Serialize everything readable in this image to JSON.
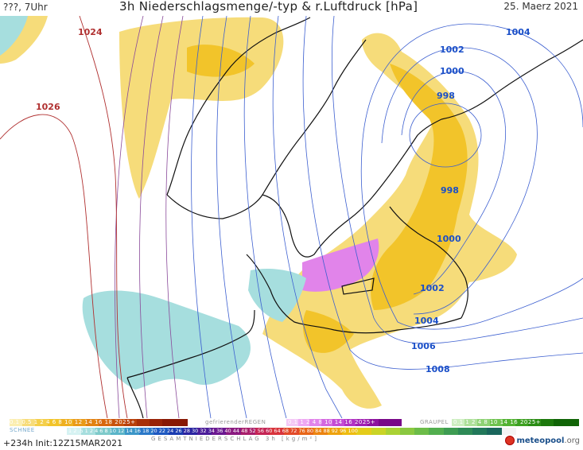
{
  "header": {
    "left": "???, 7Uhr",
    "title": "3h Niederschlagsmenge/-typ & r.Luftdruck [hPa]",
    "date": "25. Maerz 2021"
  },
  "isobars": {
    "l1004a": "1004",
    "l1002a": "1002",
    "l1000a": "1000",
    "l998a": "998",
    "l998b": "998",
    "l1000b": "1000",
    "l1002b": "1002",
    "l1004b": "1004",
    "l1006": "1006",
    "l1008": "1008",
    "l1024": "1024",
    "l1026": "1026"
  },
  "legend": {
    "rain_values": "0.1 0.5 1 2 4 6 8 10 12 14 16 18 2025+",
    "freezing_label": "gefrierenderREGEN",
    "freezing_values": "0.1 1 2 4 8 10 14 16 2025+",
    "graupel_label": "GRAUPEL",
    "graupel_values": "0.1 1 2 4 8 10 14 16 2025+",
    "snow_label": "SCHNEE",
    "snow_values": "1 2 .5 1 2 4 6 8 10 12 14 16 18 20 22 24 26 28 30 32 34 36 40 44 48 52 56 60 64 68 72 76 80 84 88 92 96 100",
    "gesamt_label": "GESAMTNIEDERSCHLAG 3h [kg/m²]",
    "run_info": "+234h  Init:12Z15MAR2021",
    "brand_name": "meteopool",
    "brand_tld": ".org"
  },
  "colors": {
    "rain": "#f2c42a",
    "rain_light": "#f6dc7a",
    "snow": "#a6dede",
    "freezing": "#e184ea",
    "isobar_low": "#3c5fd0",
    "isobar_high": "#b03030",
    "coast": "#111111"
  }
}
